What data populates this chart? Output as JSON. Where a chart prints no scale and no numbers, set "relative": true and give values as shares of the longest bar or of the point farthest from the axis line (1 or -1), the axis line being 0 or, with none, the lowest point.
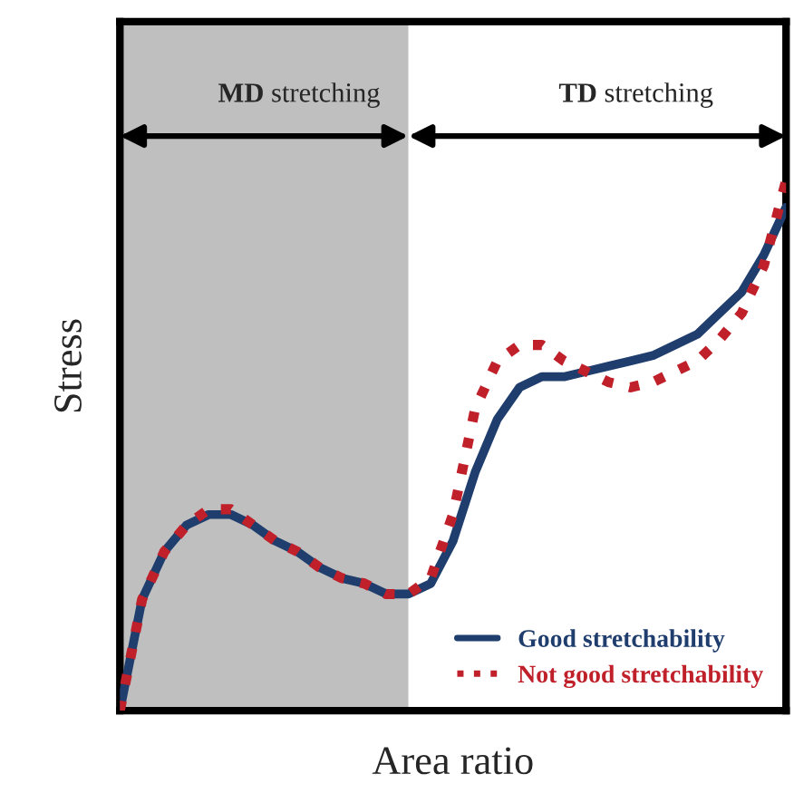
{
  "chart_data": {
    "type": "line",
    "relative": true,
    "xlabel": "Area ratio",
    "ylabel": "Stress",
    "categories": [
      null,
      null,
      null,
      null,
      null,
      null,
      null,
      null,
      null,
      null,
      null,
      null,
      null,
      null,
      null,
      null,
      null,
      null,
      null,
      null,
      null,
      null,
      null,
      null,
      null,
      null,
      null,
      null,
      null,
      null,
      null
    ],
    "series": [
      {
        "name": "Good stretchability",
        "color": "#1f3e6e",
        "line_style": "solid",
        "values": [
          0,
          0.21,
          0.3,
          0.35,
          0.37,
          0.37,
          0.35,
          0.32,
          0.3,
          0.27,
          0.25,
          0.24,
          0.22,
          0.22,
          0.24,
          0.32,
          0.45,
          0.55,
          0.61,
          0.63,
          0.63,
          0.64,
          0.65,
          0.66,
          0.67,
          0.69,
          0.71,
          0.75,
          0.79,
          0.86,
          0.95
        ]
      },
      {
        "name": "Not good stretchability",
        "color": "#c0202a",
        "line_style": "dotted",
        "values": [
          0,
          0.21,
          0.3,
          0.35,
          0.38,
          0.38,
          0.35,
          0.32,
          0.3,
          0.27,
          0.25,
          0.24,
          0.22,
          0.22,
          0.25,
          0.37,
          0.57,
          0.66,
          0.69,
          0.69,
          0.66,
          0.64,
          0.62,
          0.61,
          0.62,
          0.64,
          0.66,
          0.7,
          0.75,
          0.84,
          1.0
        ]
      }
    ],
    "annotations": [
      "MD stretching",
      "TD stretching"
    ],
    "legend": "bottom right"
  }
}
